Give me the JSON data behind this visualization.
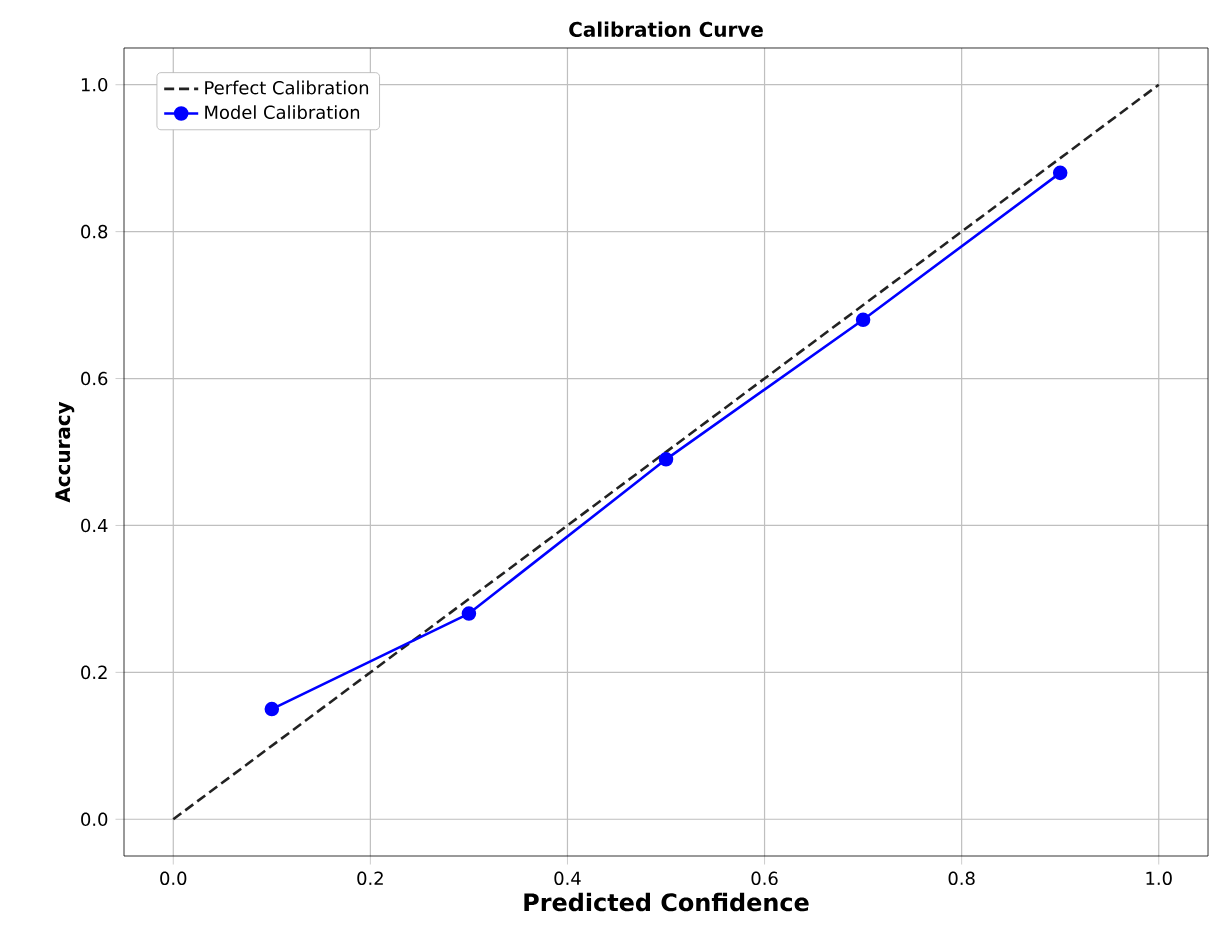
{
  "chart_data": {
    "type": "line",
    "title": "Calibration Curve",
    "xlabel": "Predicted Confidence",
    "ylabel": "Accuracy",
    "xlim": [
      -0.05,
      1.05
    ],
    "ylim": [
      -0.05,
      1.05
    ],
    "xticks": [
      {
        "value": 0,
        "label": "0.0"
      },
      {
        "value": 0.2,
        "label": "0.2"
      },
      {
        "value": 0.4,
        "label": "0.4"
      },
      {
        "value": 0.6,
        "label": "0.6"
      },
      {
        "value": 0.8,
        "label": "0.8"
      },
      {
        "value": 1,
        "label": "1.0"
      }
    ],
    "yticks": [
      {
        "value": 0,
        "label": "0.0"
      },
      {
        "value": 0.2,
        "label": "0.2"
      },
      {
        "value": 0.4,
        "label": "0.4"
      },
      {
        "value": 0.6,
        "label": "0.6"
      },
      {
        "value": 0.8,
        "label": "0.8"
      },
      {
        "value": 1,
        "label": "1.0"
      }
    ],
    "grid": true,
    "legend": "top left",
    "series": [
      {
        "name": "Perfect Calibration",
        "color": "#222222",
        "x": [
          0,
          1
        ],
        "values": [
          0,
          1
        ],
        "line_style": "dashed",
        "marker": "none"
      },
      {
        "name": "Model Calibration",
        "color": "#0000ff",
        "x": [
          0.1,
          0.3,
          0.5,
          0.7,
          0.9
        ],
        "values": [
          0.15,
          0.28,
          0.49,
          0.68,
          0.88
        ],
        "line_style": "solid",
        "marker": "circle"
      }
    ]
  }
}
